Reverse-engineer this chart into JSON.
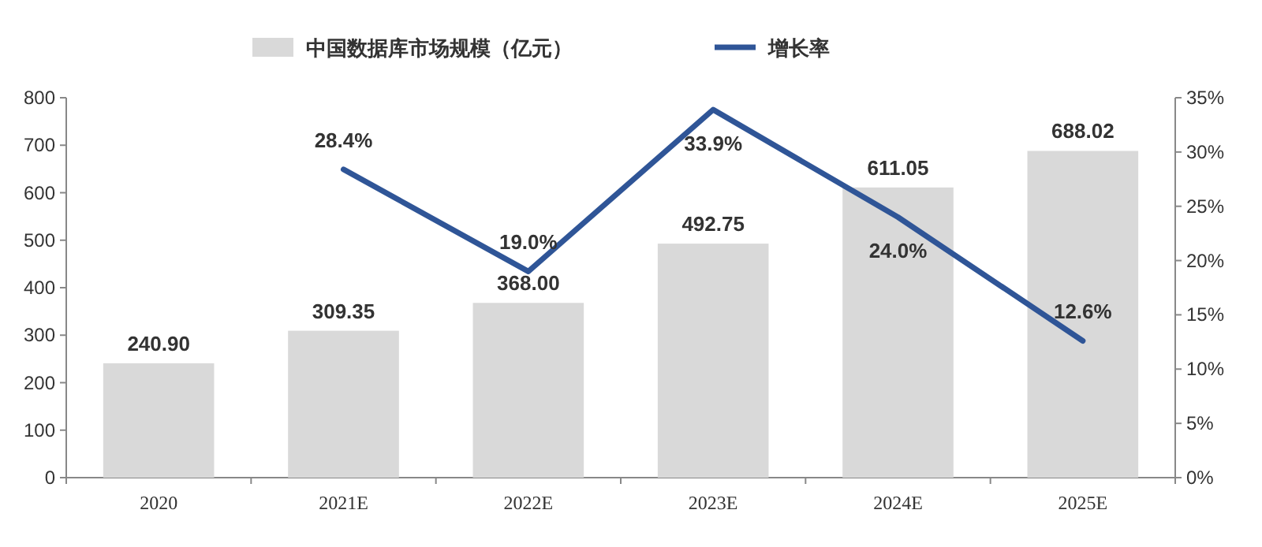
{
  "chart_data": {
    "type": "bar",
    "categories": [
      "2020",
      "2021E",
      "2022E",
      "2023E",
      "2024E",
      "2025E"
    ],
    "series": [
      {
        "name": "中国数据库市场规模（亿元）",
        "color": "#d9d9d9",
        "values": [
          240.9,
          309.35,
          368,
          492.75,
          611.05,
          688.02
        ],
        "value_labels": [
          "240.90",
          "309.35",
          "368.00",
          "492.75",
          "611.05",
          "688.02"
        ]
      },
      {
        "name": "增长率",
        "type": "line",
        "axis": "y2",
        "color": "#2f5597",
        "values": [
          null,
          28.4,
          19.0,
          33.9,
          24.0,
          12.6
        ],
        "value_labels": [
          null,
          "28.4%",
          "19.0%",
          "33.9%",
          "24.0%",
          "12.6%"
        ]
      }
    ],
    "ylim": [
      0,
      800
    ],
    "yticks": [
      0,
      100,
      200,
      300,
      400,
      500,
      600,
      700,
      800
    ],
    "y2lim": [
      0,
      35
    ],
    "y2ticks": [
      {
        "value": 0,
        "label": "0%"
      },
      {
        "value": 5,
        "label": "5%"
      },
      {
        "value": 10,
        "label": "10%"
      },
      {
        "value": 15,
        "label": "15%"
      },
      {
        "value": 20,
        "label": "20%"
      },
      {
        "value": 25,
        "label": "25%"
      },
      {
        "value": 30,
        "label": "30%"
      },
      {
        "value": 35,
        "label": "35%"
      }
    ],
    "legend": "top",
    "grid": false,
    "marker": "none",
    "line_style": "solid"
  }
}
